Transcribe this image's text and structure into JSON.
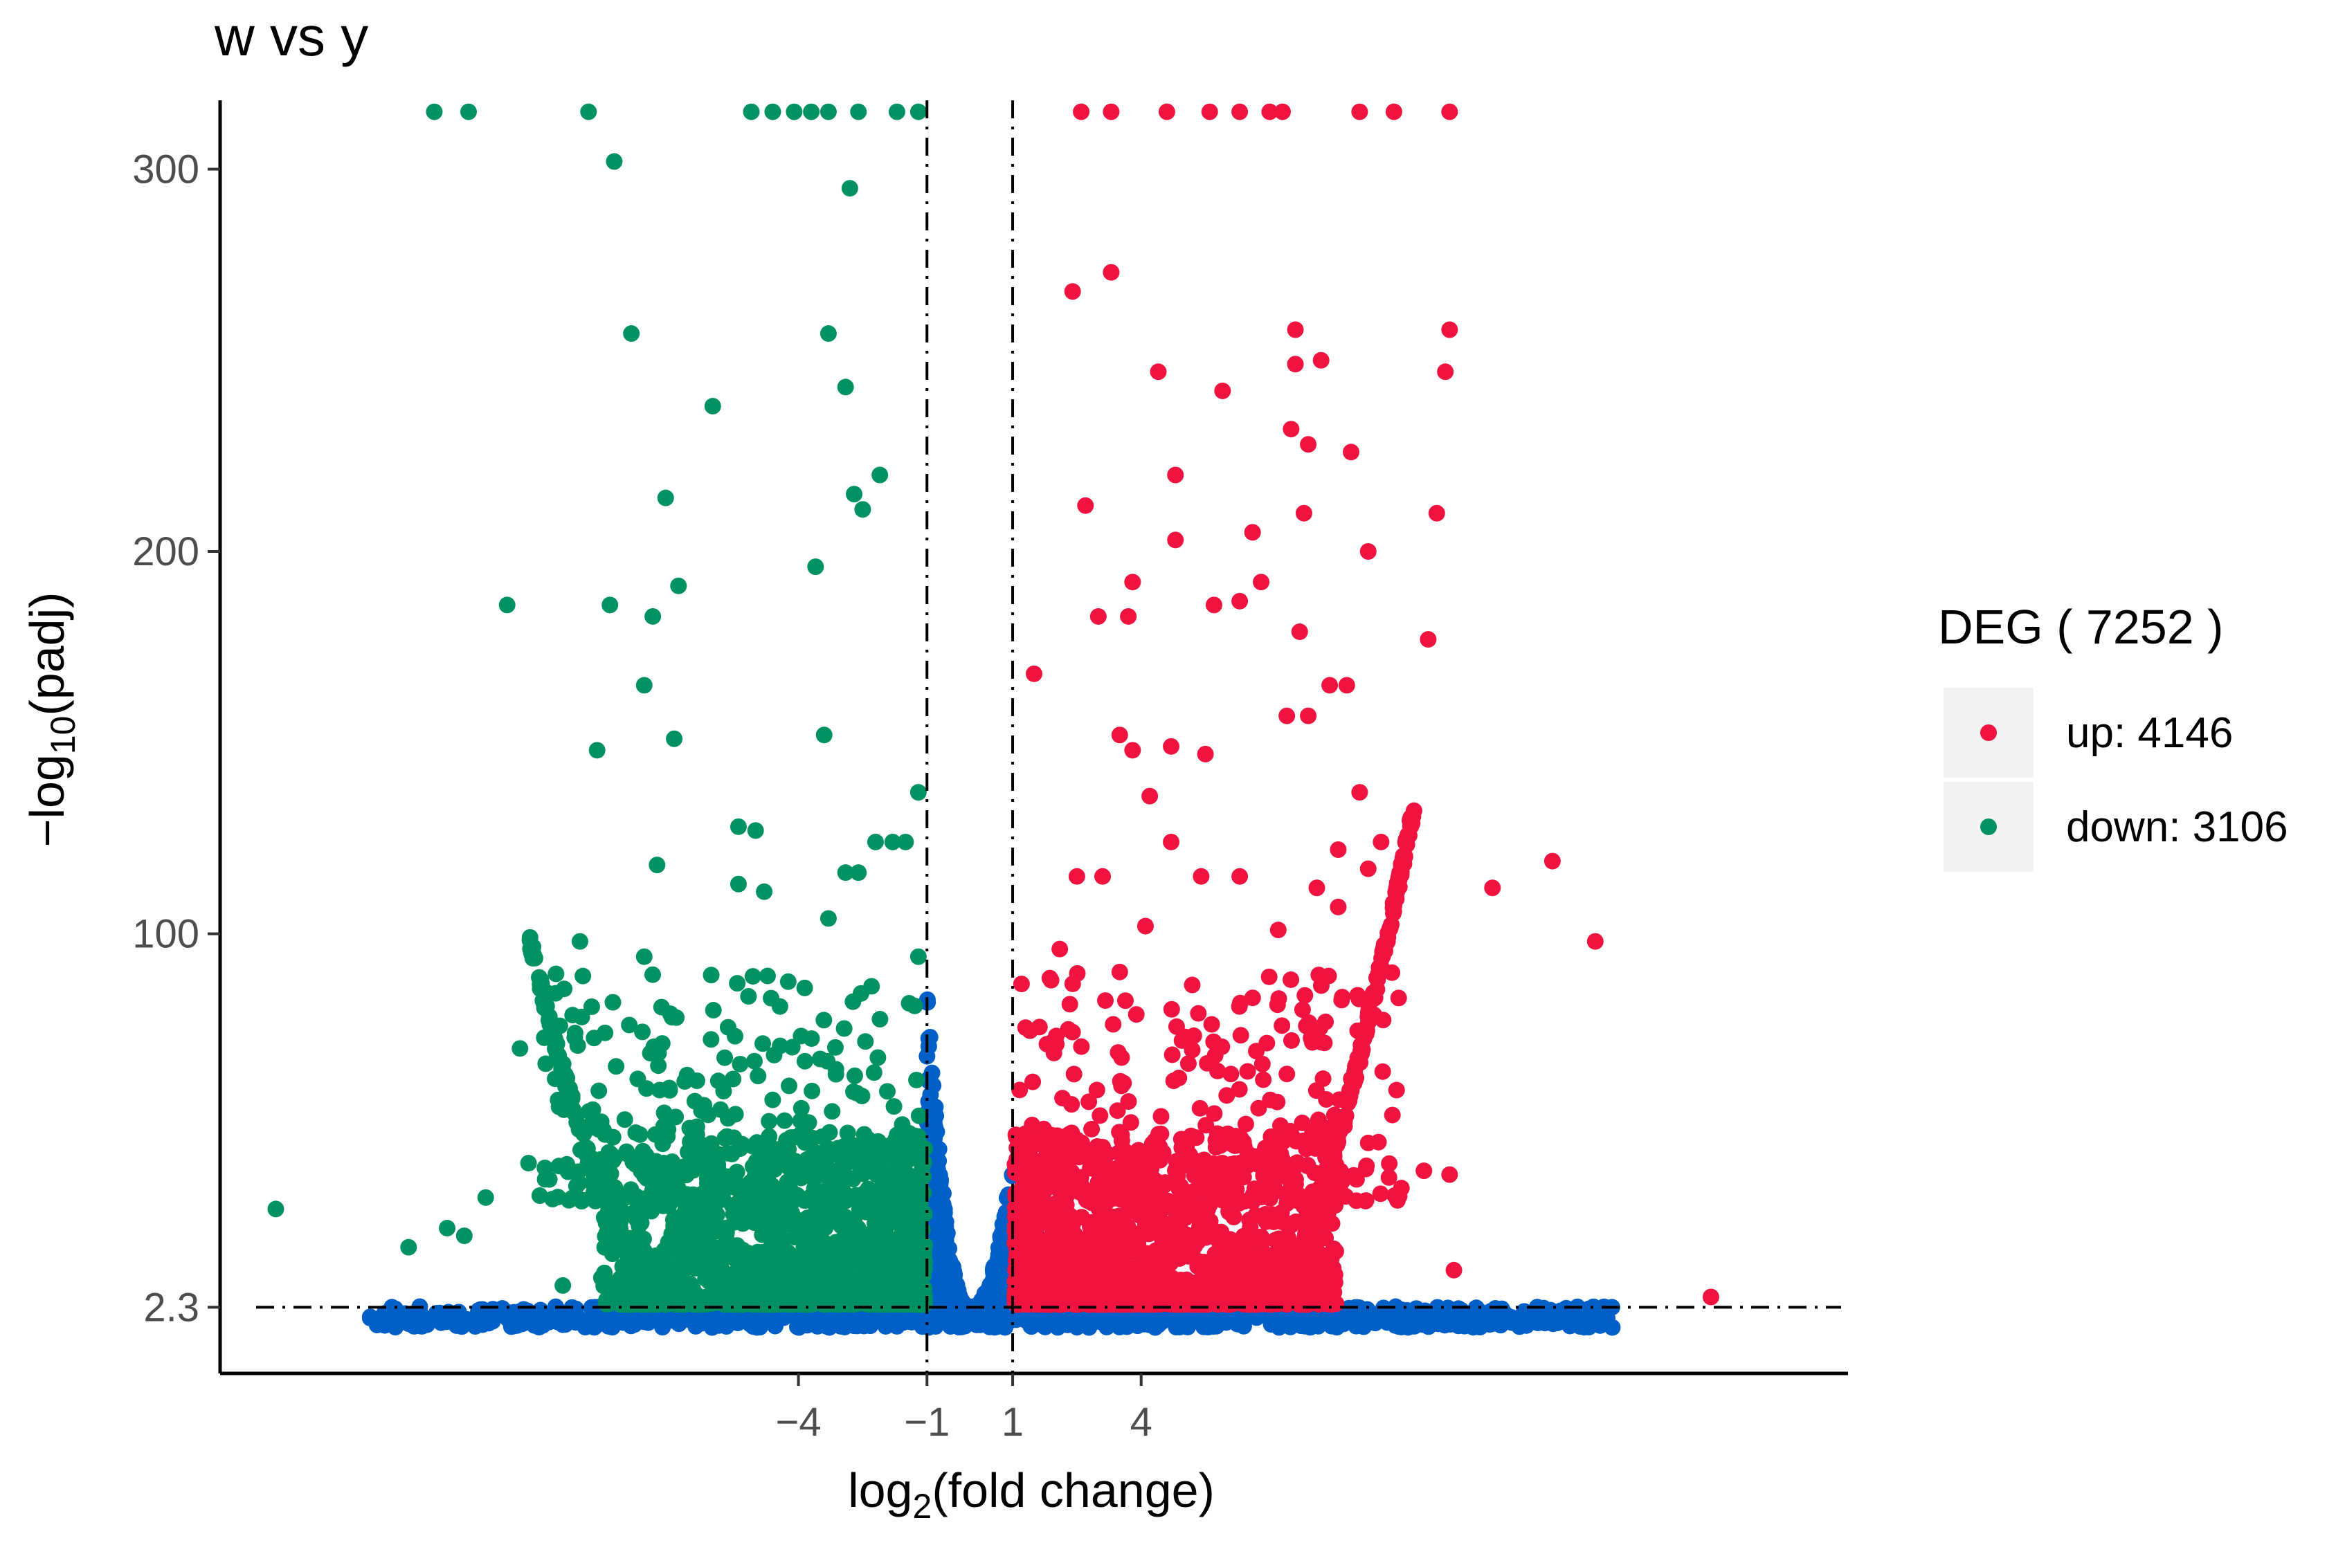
{
  "chart_data": {
    "type": "scatter",
    "title": "w   vs   y",
    "xlabel_main": "log",
    "xlabel_sub": "2",
    "xlabel_rest": "(fold change)",
    "ylabel_main": "−log",
    "ylabel_sub": "10",
    "ylabel_rest": "(padj)",
    "xlim": [
      -17.5,
      20.5
    ],
    "ylim": [
      -15,
      318
    ],
    "x_ticks": [
      {
        "value": -4,
        "label": "−4"
      },
      {
        "value": -1,
        "label": "−1"
      },
      {
        "value": 1,
        "label": "1"
      },
      {
        "value": 4,
        "label": "4"
      }
    ],
    "y_ticks": [
      {
        "value": 2.3,
        "label": "2.3"
      },
      {
        "value": 100,
        "label": "100"
      },
      {
        "value": 200,
        "label": "200"
      },
      {
        "value": 300,
        "label": "300"
      }
    ],
    "thresholds": {
      "x": [
        -1,
        1
      ],
      "y": 2.3
    },
    "grid": false,
    "legend": {
      "title": "DEG ( 7252 )",
      "placement": "right",
      "entries": [
        {
          "label": "up: 4146",
          "color": "#f0133f"
        },
        {
          "label": "down: 3106",
          "color": "#009263"
        }
      ]
    },
    "colors": {
      "up": "#f0133f",
      "down": "#009263",
      "nonsig": "#0060c8"
    },
    "counts": {
      "up": 4146,
      "down": 3106
    },
    "series": [
      {
        "name": "up: 4146",
        "color": "#f0133f",
        "points": [
          [
            2.6,
            315
          ],
          [
            3.3,
            315
          ],
          [
            4.6,
            315
          ],
          [
            5.6,
            315
          ],
          [
            6.3,
            315
          ],
          [
            7,
            315
          ],
          [
            7.3,
            315
          ],
          [
            9.1,
            315
          ],
          [
            9.9,
            315
          ],
          [
            11.2,
            315
          ],
          [
            1.5,
            168
          ],
          [
            2.4,
            268
          ],
          [
            3.3,
            273
          ],
          [
            2.7,
            212
          ],
          [
            3,
            183
          ],
          [
            3.7,
            183
          ],
          [
            4.4,
            247
          ],
          [
            4.8,
            220
          ],
          [
            4.8,
            203
          ],
          [
            3.8,
            192
          ],
          [
            5.9,
            242
          ],
          [
            6.6,
            205
          ],
          [
            6.8,
            192
          ],
          [
            7.7,
            179
          ],
          [
            7.8,
            210
          ],
          [
            7.6,
            258
          ],
          [
            7.6,
            249
          ],
          [
            8.2,
            250
          ],
          [
            8.9,
            226
          ],
          [
            9.3,
            200
          ],
          [
            7.5,
            232
          ],
          [
            7.9,
            228
          ],
          [
            5.7,
            186
          ],
          [
            6.3,
            187
          ],
          [
            7.9,
            157
          ],
          [
            8.4,
            165
          ],
          [
            8.8,
            165
          ],
          [
            7.4,
            157
          ],
          [
            10.7,
            177
          ],
          [
            10.9,
            210
          ],
          [
            11.2,
            258
          ],
          [
            11.1,
            247
          ],
          [
            12.2,
            112
          ],
          [
            13.6,
            119
          ],
          [
            14.6,
            98
          ],
          [
            10.6,
            38
          ],
          [
            11.2,
            37
          ],
          [
            11.3,
            12
          ],
          [
            17.3,
            5
          ],
          [
            9.1,
            137
          ],
          [
            8.6,
            122
          ],
          [
            9.6,
            124
          ],
          [
            3.5,
            152
          ],
          [
            3.8,
            148
          ],
          [
            4.2,
            136
          ],
          [
            4.7,
            149
          ],
          [
            5.5,
            147
          ],
          [
            2.1,
            96
          ],
          [
            2.5,
            115
          ],
          [
            3.1,
            115
          ],
          [
            4.1,
            102
          ],
          [
            4.7,
            124
          ],
          [
            5.4,
            115
          ],
          [
            6.3,
            115
          ],
          [
            7.2,
            101
          ],
          [
            8.1,
            112
          ],
          [
            8.6,
            107
          ],
          [
            9.3,
            117
          ],
          [
            2.3,
            75
          ],
          [
            3.5,
            90
          ]
        ]
      },
      {
        "name": "down: 3106",
        "color": "#009263",
        "points": [
          [
            -12.5,
            315
          ],
          [
            -11.7,
            315
          ],
          [
            -8.9,
            315
          ],
          [
            -5.1,
            315
          ],
          [
            -4.6,
            315
          ],
          [
            -4.1,
            315
          ],
          [
            -3.7,
            315
          ],
          [
            -3.3,
            315
          ],
          [
            -2.6,
            315
          ],
          [
            -1.7,
            315
          ],
          [
            -1.2,
            315
          ],
          [
            -8.3,
            302
          ],
          [
            -2.8,
            295
          ],
          [
            -10.8,
            186
          ],
          [
            -7.9,
            257
          ],
          [
            -3.3,
            257
          ],
          [
            -2.9,
            243
          ],
          [
            -6.0,
            238
          ],
          [
            -2.7,
            215
          ],
          [
            -2.1,
            220
          ],
          [
            -7.1,
            214
          ],
          [
            -2.5,
            211
          ],
          [
            -3.6,
            196
          ],
          [
            -6.8,
            191
          ],
          [
            -8.4,
            186
          ],
          [
            -7.4,
            183
          ],
          [
            -7.6,
            165
          ],
          [
            -3.4,
            152
          ],
          [
            -6.9,
            151
          ],
          [
            -8.7,
            148
          ],
          [
            -1.2,
            137
          ],
          [
            -5.4,
            128
          ],
          [
            -5.0,
            127
          ],
          [
            -1.5,
            124
          ],
          [
            -2.2,
            124
          ],
          [
            -1.8,
            124
          ],
          [
            -7.3,
            118
          ],
          [
            -2.9,
            116
          ],
          [
            -2.6,
            116
          ],
          [
            -5.4,
            113
          ],
          [
            -4.8,
            111
          ],
          [
            -3.3,
            104
          ],
          [
            -9.1,
            98
          ],
          [
            -7.6,
            94
          ],
          [
            -1.2,
            94
          ],
          [
            -16.2,
            28
          ],
          [
            -13.1,
            18
          ],
          [
            -11.8,
            21
          ],
          [
            -10.5,
            70
          ],
          [
            -9.9,
            66
          ],
          [
            -12.2,
            23
          ],
          [
            -11.3,
            31
          ],
          [
            -9.5,
            8
          ],
          [
            -8.6,
            10
          ],
          [
            -10.3,
            40
          ],
          [
            -8.8,
            54
          ]
        ]
      }
    ]
  }
}
